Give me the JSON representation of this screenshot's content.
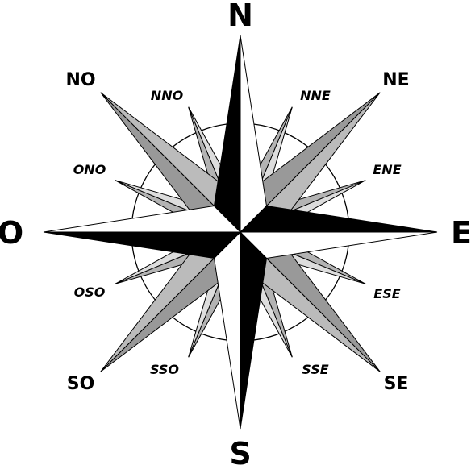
{
  "compass_rose": {
    "cardinal": {
      "north": "N",
      "east": "E",
      "south": "S",
      "west": "O"
    },
    "intercardinal": {
      "northeast": "NE",
      "southeast": "SE",
      "southwest": "SO",
      "northwest": "NO"
    },
    "secondary": {
      "nne": "NNE",
      "ene": "ENE",
      "ese": "ESE",
      "sse": "SSE",
      "sso": "SSO",
      "oso": "OSO",
      "ono": "ONO",
      "nno": "NNO"
    },
    "colors": {
      "cardinal_dark": "#000000",
      "cardinal_light": "#ffffff",
      "intercardinal_dark": "#999999",
      "intercardinal_light": "#bbbbbb",
      "secondary_dark": "#b3b3b3",
      "secondary_light": "#dddddd"
    }
  }
}
